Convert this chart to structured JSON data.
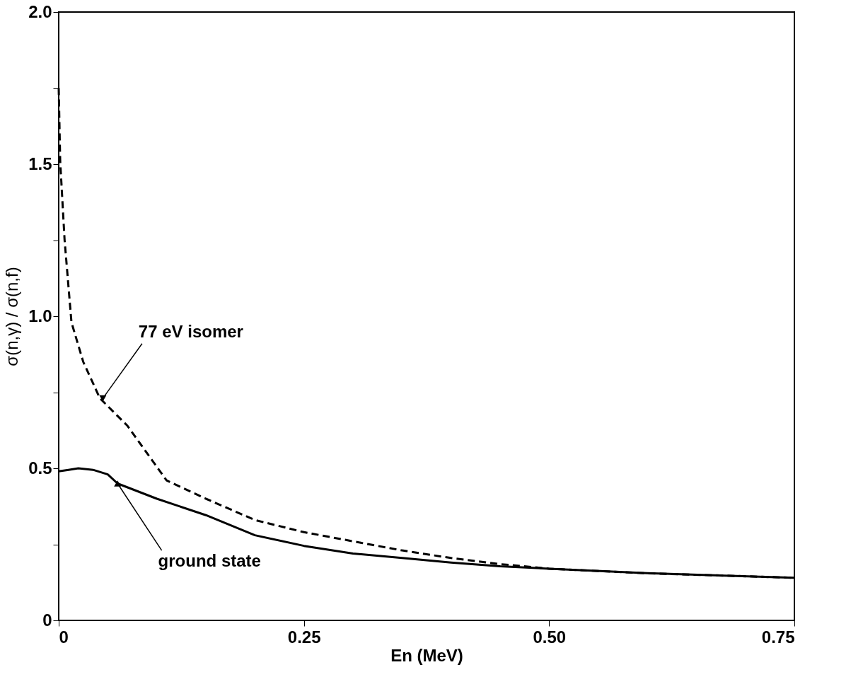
{
  "chart_data": {
    "type": "line",
    "xlabel": "En (MeV)",
    "ylabel": "σ(n,γ) / σ(n,f)",
    "xlim": [
      0,
      0.75
    ],
    "ylim": [
      0,
      2.0
    ],
    "xticks": [
      0,
      0.25,
      {
        "value": 0.5,
        "label": "0.50"
      },
      0.75
    ],
    "yticks": [
      0,
      {
        "value": 0.25,
        "label": null
      },
      0.5,
      {
        "value": 0.75,
        "label": null
      },
      {
        "value": 1.0,
        "label": "1.0"
      },
      {
        "value": 1.25,
        "label": null
      },
      1.5,
      {
        "value": 1.75,
        "label": null
      },
      {
        "value": 2.0,
        "label": "2.0"
      }
    ],
    "grid": false,
    "legend": false,
    "marker": "none",
    "series": [
      {
        "color": "#000000",
        "line_style": "dashed",
        "x": [
          0,
          0.0015,
          0.006,
          0.013,
          0.025,
          0.042,
          0.07,
          0.11,
          0.15,
          0.2,
          0.25,
          0.3,
          0.35,
          0.4,
          0.45,
          0.5,
          0.6,
          0.75
        ],
        "values": [
          1.75,
          1.51,
          1.25,
          0.98,
          0.85,
          0.73,
          0.64,
          0.46,
          0.4,
          0.33,
          0.29,
          0.26,
          0.23,
          0.205,
          0.185,
          0.17,
          0.155,
          0.14
        ]
      },
      {
        "color": "#000000",
        "line_style": "solid",
        "x": [
          0,
          0.01,
          0.02,
          0.035,
          0.05,
          0.06,
          0.1,
          0.15,
          0.2,
          0.25,
          0.3,
          0.35,
          0.4,
          0.45,
          0.5,
          0.6,
          0.75
        ],
        "values": [
          0.49,
          0.495,
          0.5,
          0.495,
          0.48,
          0.45,
          0.4,
          0.346,
          0.28,
          0.245,
          0.22,
          0.205,
          0.19,
          0.178,
          0.17,
          0.155,
          0.14
        ]
      }
    ],
    "annotations": [
      {
        "text": "77 eV isomer",
        "x": 0.045,
        "y": 0.73
      },
      {
        "text": "ground state",
        "x": 0.06,
        "y": 0.45
      }
    ]
  }
}
